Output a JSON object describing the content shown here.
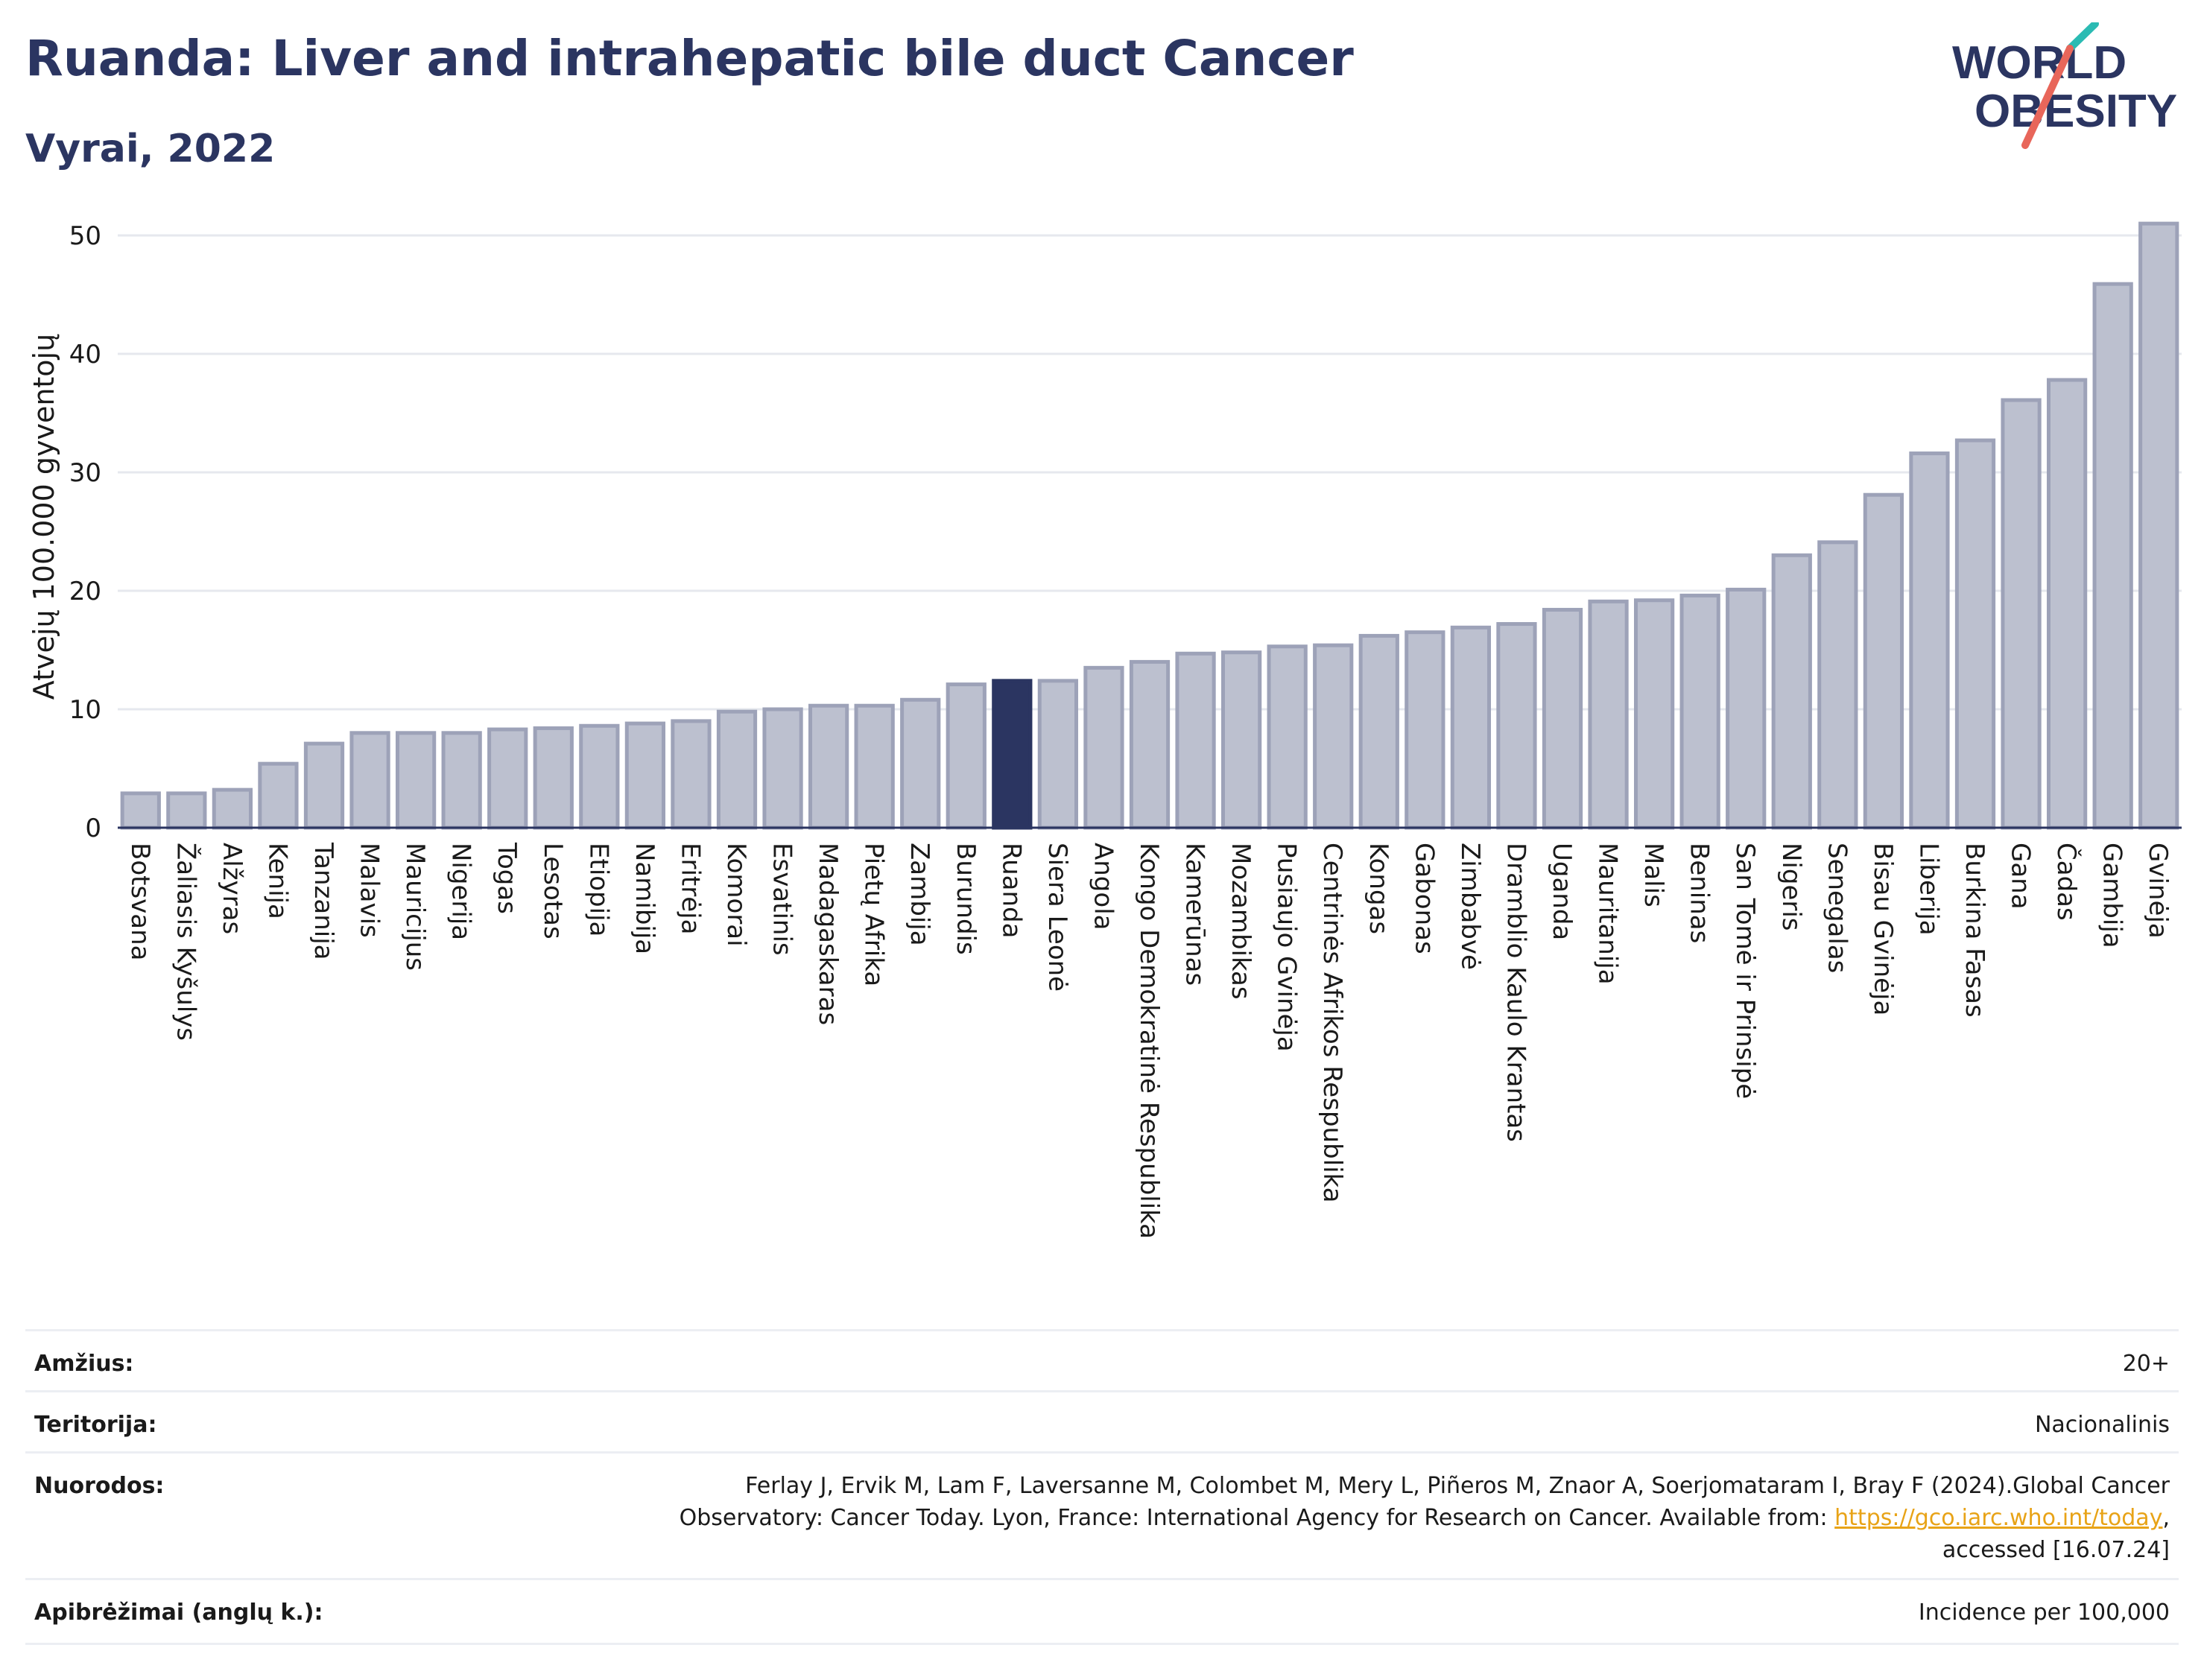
{
  "header": {
    "title": "Ruanda: Liver and intrahepatic bile duct Cancer",
    "subtitle": "Vyrai, 2022"
  },
  "logo": {
    "line1": "WORLD",
    "line2": "OBESITY",
    "accent_teal": "#2bbbb3",
    "accent_red": "#e8665a",
    "text_color": "#2b3561"
  },
  "colors": {
    "bar": "#bcc0cf",
    "bar_edge": "#9da2b8",
    "highlight": "#2b3561",
    "grid": "#e6e8ee",
    "axis": "#2b3561"
  },
  "chart_data": {
    "type": "bar",
    "ylabel": "Atvejų 100.000 gyventojų",
    "ylim": [
      0,
      52
    ],
    "yticks": [
      0,
      10,
      20,
      30,
      40,
      50
    ],
    "grid": true,
    "highlight": "Ruanda",
    "categories": [
      "Botsvana",
      "Žaliasis Kyšulys",
      "Alžyras",
      "Kenija",
      "Tanzanija",
      "Malavis",
      "Mauricijus",
      "Nigerija",
      "Togas",
      "Lesotas",
      "Etiopija",
      "Namibija",
      "Eritrėja",
      "Komorai",
      "Esvatinis",
      "Madagaskaras",
      "Pietų Afrika",
      "Zambija",
      "Burundis",
      "Ruanda",
      "Siera Leonė",
      "Angola",
      "Kongo Demokratinė Respublika",
      "Kamerūnas",
      "Mozambikas",
      "Pusiaujo Gvinėja",
      "Centrinės Afrikos Respublika",
      "Kongas",
      "Gabonas",
      "Zimbabvė",
      "Dramblio Kaulo Krantas",
      "Uganda",
      "Mauritanija",
      "Malis",
      "Beninas",
      "San Tomė ir Prinsipė",
      "Nigeris",
      "Senegalas",
      "Bisau Gvinėja",
      "Liberija",
      "Burkina Fasas",
      "Gana",
      "Čadas",
      "Gambija",
      "Gvinėja"
    ],
    "values": [
      2.9,
      2.9,
      3.2,
      5.4,
      7.1,
      8.0,
      8.0,
      8.0,
      8.3,
      8.4,
      8.6,
      8.8,
      9.0,
      9.8,
      10.0,
      10.3,
      10.3,
      10.8,
      12.1,
      12.4,
      12.4,
      13.5,
      14.0,
      14.7,
      14.8,
      15.3,
      15.4,
      16.2,
      16.5,
      16.9,
      17.2,
      18.4,
      19.1,
      19.2,
      19.6,
      20.1,
      23.0,
      24.1,
      28.1,
      31.6,
      32.7,
      36.1,
      37.8,
      45.9,
      51.0
    ]
  },
  "info": {
    "age_label": "Amžius:",
    "age_value": "20+",
    "territory_label": "Teritorija:",
    "territory_value": "Nacionalinis",
    "refs_label": "Nuorodos:",
    "refs_line1": "Ferlay J, Ervik M, Lam F, Laversanne M, Colombet M, Mery L, Piñeros M, Znaor A, Soerjomataram I, Bray F (2024).Global Cancer",
    "refs_line2": "Observatory: Cancer Today. Lyon, France: International Agency for Research on Cancer. Available from: ",
    "refs_link": "https://gco.iarc.who.int/today",
    "refs_line2_end": ",",
    "refs_line3": "accessed [16.07.24]",
    "defs_label": "Apibrėžimai (anglų k.):",
    "defs_value": "Incidence per 100,000"
  }
}
